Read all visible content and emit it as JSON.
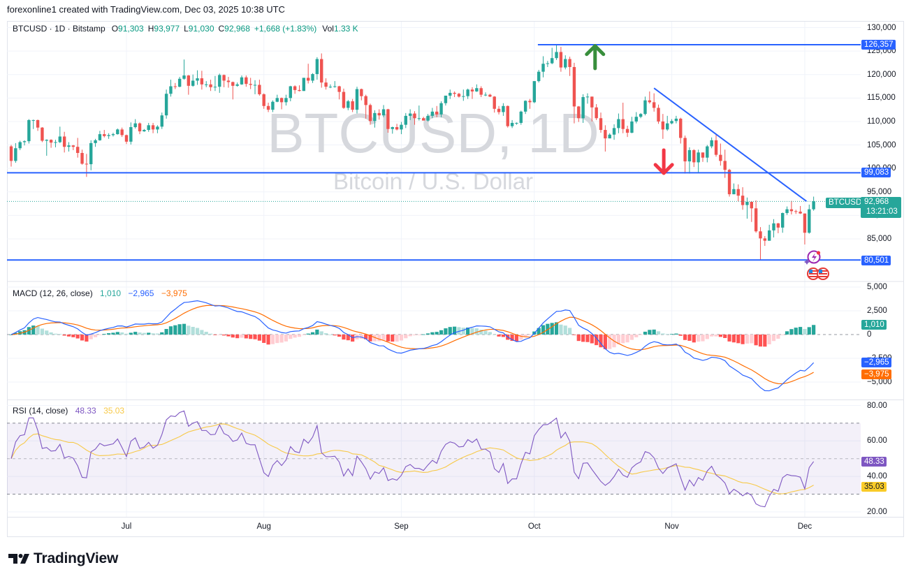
{
  "header": {
    "attribution": "forexonline1 created with TradingView.com, Dec 03, 2025 10:38 UTC"
  },
  "legend": {
    "title": "BTCUSD · 1D · Bitstamp",
    "open_label": "O",
    "open": "91,303",
    "high_label": "H",
    "high": "93,977",
    "low_label": "L",
    "low": "91,030",
    "close_label": "C",
    "close": "92,968",
    "change": "+1,668 (+1.83%)",
    "vol_label": "Vol",
    "vol": "1.33 K"
  },
  "watermark": {
    "title": "BTCUSD, 1D",
    "subtitle": "Bitcoin / U.S. Dollar"
  },
  "price_tags": {
    "symbol": "BTCUSD",
    "last_price": "92,968",
    "countdown": "13:21:03",
    "level_high": "126,357",
    "level_mid": "99,083",
    "level_low": "80,501"
  },
  "macd": {
    "label": "MACD (12, 26, close)",
    "histogram": "1,010",
    "macd": "−2,965",
    "signal": "−3,975"
  },
  "rsi": {
    "label": "RSI (14, close)",
    "rsi": "48.33",
    "rsi_ma": "35.03"
  },
  "logo": {
    "text": "TradingView"
  },
  "colors": {
    "up": "#26a69a",
    "down": "#ef5350",
    "drawing_blue": "#2962ff",
    "arrow_up": "#388e3c",
    "arrow_down": "#f23645",
    "macd_line": "#2962ff",
    "signal_line": "#ff6d00",
    "hist_pos_strong": "#26a69a",
    "hist_pos_weak": "#b2dfdb",
    "hist_neg_strong": "#ff5252",
    "hist_neg_weak": "#ffcdd2",
    "rsi_line": "#7e57c2",
    "rsi_ma_line": "#f7c948",
    "rsi_band": "#7e57c2",
    "grid": "#f0f3fa",
    "watermark": "#d6d8dd"
  },
  "chart_data": {
    "type": "candlestick",
    "title": "BTCUSD · 1D · Bitstamp",
    "symbol": "BTCUSD",
    "interval": "1D",
    "unit": "candles are [open, high, low, close] in thousands USD, one per day",
    "x_ticks": [
      {
        "label": "Jul",
        "index": 26
      },
      {
        "label": "Aug",
        "index": 57
      },
      {
        "label": "Sep",
        "index": 88
      },
      {
        "label": "Oct",
        "index": 118
      },
      {
        "label": "Nov",
        "index": 149
      },
      {
        "label": "Dec",
        "index": 179
      }
    ],
    "price_ticks": [
      {
        "value": 130000,
        "label": "130,000"
      },
      {
        "value": 125000,
        "label": "125,000"
      },
      {
        "value": 120000,
        "label": "120,000"
      },
      {
        "value": 115000,
        "label": "115,000"
      },
      {
        "value": 110000,
        "label": "110,000"
      },
      {
        "value": 105000,
        "label": "105,000"
      },
      {
        "value": 100000,
        "label": "100,000"
      },
      {
        "value": 95000,
        "label": "95,000"
      },
      {
        "value": 90000,
        "label": "90,000"
      },
      {
        "value": 85000,
        "label": "85,000"
      }
    ],
    "macd_ticks": [
      {
        "value": 5000,
        "label": "5,000"
      },
      {
        "value": 2500,
        "label": "2,500"
      },
      {
        "value": 0,
        "label": "0"
      },
      {
        "value": -2500,
        "label": "−2,500"
      },
      {
        "value": -5000,
        "label": "−5,000"
      }
    ],
    "rsi_ticks": [
      {
        "value": 80,
        "label": "80.00"
      },
      {
        "value": 60,
        "label": "60.00"
      },
      {
        "value": 40,
        "label": "40.00"
      },
      {
        "value": 20,
        "label": "20.00"
      }
    ],
    "ylim": [
      78000,
      131000
    ],
    "last_price": 92968,
    "horizontal_levels": [
      {
        "value": 126357,
        "label": "126,357",
        "start_index": 118.8
      },
      {
        "value": 99083,
        "label": "99,083",
        "start_index": -1
      },
      {
        "value": 80501,
        "label": "80,501",
        "start_index": -1
      }
    ],
    "trendline": {
      "from": {
        "index": 145,
        "price": 117100
      },
      "to": {
        "index": 179.4,
        "price": 93000
      }
    },
    "arrows": [
      {
        "direction": "up",
        "index": 131.7,
        "from_price": 121300,
        "to_price": 126100
      },
      {
        "direction": "down",
        "index": 147.2,
        "from_price": 103900,
        "to_price": 99000
      }
    ],
    "indicator_values": {
      "macd_histogram": 1010,
      "macd": -2965,
      "macd_signal": -3975,
      "rsi": 48.33,
      "rsi_ma": 35.03,
      "rsi_levels": [
        70,
        50,
        30
      ]
    },
    "candles": [
      [
        104.7,
        105.0,
        100.4,
        101.6
      ],
      [
        101.6,
        105.4,
        101.2,
        104.3
      ],
      [
        104.3,
        105.9,
        103.9,
        105.6
      ],
      [
        105.6,
        106.0,
        104.9,
        105.8
      ],
      [
        105.8,
        110.5,
        105.3,
        110.3
      ],
      [
        110.3,
        110.4,
        108.4,
        110.3
      ],
      [
        110.3,
        110.4,
        108.0,
        108.7
      ],
      [
        108.7,
        108.8,
        105.6,
        105.9
      ],
      [
        105.9,
        106.2,
        102.7,
        106.1
      ],
      [
        106.1,
        106.2,
        104.4,
        105.5
      ],
      [
        105.5,
        106.1,
        104.5,
        105.6
      ],
      [
        105.6,
        108.9,
        105.4,
        106.8
      ],
      [
        106.8,
        107.8,
        103.4,
        104.6
      ],
      [
        104.6,
        105.6,
        103.6,
        104.9
      ],
      [
        104.9,
        105.0,
        103.9,
        104.6
      ],
      [
        104.6,
        106.5,
        102.3,
        103.3
      ],
      [
        103.3,
        104.0,
        100.8,
        101.0
      ],
      [
        101.0,
        103.1,
        98.2,
        100.9
      ],
      [
        100.9,
        106.0,
        99.6,
        105.4
      ],
      [
        105.4,
        106.3,
        104.6,
        106.0
      ],
      [
        106.0,
        108.0,
        105.9,
        107.3
      ],
      [
        107.3,
        108.2,
        106.6,
        106.9
      ],
      [
        106.9,
        107.5,
        106.3,
        107.1
      ],
      [
        107.1,
        107.6,
        106.8,
        107.3
      ],
      [
        107.3,
        108.5,
        107.2,
        108.3
      ],
      [
        108.3,
        108.7,
        106.7,
        107.1
      ],
      [
        107.1,
        107.2,
        105.2,
        105.7
      ],
      [
        105.7,
        109.8,
        105.1,
        108.8
      ],
      [
        108.8,
        110.5,
        108.5,
        109.6
      ],
      [
        109.6,
        109.8,
        107.3,
        107.9
      ],
      [
        107.9,
        108.4,
        107.8,
        108.2
      ],
      [
        108.2,
        109.7,
        107.8,
        109.2
      ],
      [
        109.2,
        109.7,
        107.5,
        108.3
      ],
      [
        108.3,
        109.2,
        107.5,
        108.9
      ],
      [
        108.9,
        111.9,
        108.4,
        111.3
      ],
      [
        111.3,
        116.8,
        110.6,
        115.9
      ],
      [
        115.9,
        118.9,
        115.3,
        117.5
      ],
      [
        117.5,
        118.2,
        116.9,
        117.4
      ],
      [
        117.4,
        119.5,
        117.3,
        119.1
      ],
      [
        119.1,
        123.2,
        118.9,
        119.8
      ],
      [
        119.8,
        119.9,
        115.7,
        117.6
      ],
      [
        117.6,
        120.0,
        117.4,
        118.7
      ],
      [
        118.7,
        120.9,
        117.8,
        119.2
      ],
      [
        119.2,
        120.8,
        116.8,
        117.9
      ],
      [
        117.9,
        118.6,
        117.3,
        117.9
      ],
      [
        117.9,
        118.9,
        116.5,
        117.3
      ],
      [
        117.3,
        119.7,
        116.5,
        117.4
      ],
      [
        117.4,
        120.2,
        116.1,
        119.9
      ],
      [
        119.9,
        120.0,
        117.3,
        118.7
      ],
      [
        118.7,
        119.5,
        117.2,
        118.4
      ],
      [
        118.4,
        118.5,
        114.7,
        117.6
      ],
      [
        117.6,
        118.3,
        117.4,
        117.9
      ],
      [
        117.9,
        119.8,
        117.8,
        119.4
      ],
      [
        119.4,
        119.8,
        117.4,
        118.0
      ],
      [
        118.0,
        119.3,
        116.9,
        117.8
      ],
      [
        117.8,
        118.8,
        115.8,
        117.8
      ],
      [
        117.8,
        118.9,
        115.5,
        115.8
      ],
      [
        115.8,
        116.0,
        112.7,
        113.3
      ],
      [
        113.3,
        114.0,
        112.0,
        112.5
      ],
      [
        112.5,
        114.5,
        112.0,
        114.2
      ],
      [
        114.2,
        115.7,
        114.1,
        115.0
      ],
      [
        115.0,
        115.1,
        112.6,
        114.1
      ],
      [
        114.1,
        115.7,
        113.4,
        115.0
      ],
      [
        115.0,
        117.6,
        114.3,
        117.5
      ],
      [
        117.5,
        117.7,
        115.9,
        116.7
      ],
      [
        116.7,
        117.7,
        116.4,
        116.5
      ],
      [
        116.5,
        119.3,
        116.5,
        119.3
      ],
      [
        119.3,
        122.3,
        118.1,
        118.7
      ],
      [
        118.7,
        120.3,
        118.2,
        120.1
      ],
      [
        120.1,
        123.7,
        118.9,
        123.3
      ],
      [
        123.3,
        124.5,
        117.2,
        118.3
      ],
      [
        118.3,
        119.2,
        116.8,
        117.4
      ],
      [
        117.4,
        117.9,
        117.1,
        117.4
      ],
      [
        117.4,
        118.6,
        117.2,
        117.5
      ],
      [
        117.5,
        117.6,
        114.7,
        116.3
      ],
      [
        116.3,
        117.0,
        112.7,
        112.9
      ],
      [
        112.9,
        114.6,
        112.4,
        114.3
      ],
      [
        114.3,
        114.8,
        112.0,
        112.5
      ],
      [
        112.5,
        117.4,
        111.7,
        116.9
      ],
      [
        116.9,
        117.0,
        114.5,
        115.4
      ],
      [
        115.4,
        115.7,
        110.6,
        113.5
      ],
      [
        113.5,
        113.8,
        109.3,
        110.1
      ],
      [
        110.1,
        112.4,
        108.7,
        111.8
      ],
      [
        111.8,
        112.6,
        110.4,
        111.3
      ],
      [
        111.3,
        113.5,
        110.9,
        112.6
      ],
      [
        112.6,
        112.7,
        107.6,
        108.4
      ],
      [
        108.4,
        108.9,
        107.4,
        108.8
      ],
      [
        108.8,
        109.5,
        108.1,
        108.3
      ],
      [
        108.3,
        109.9,
        107.3,
        109.3
      ],
      [
        109.3,
        111.8,
        108.6,
        111.2
      ],
      [
        111.2,
        112.6,
        110.3,
        111.7
      ],
      [
        111.7,
        112.2,
        109.3,
        110.7
      ],
      [
        110.7,
        113.4,
        110.2,
        110.7
      ],
      [
        110.7,
        111.0,
        110.2,
        110.2
      ],
      [
        110.2,
        111.6,
        110.0,
        111.2
      ],
      [
        111.2,
        112.9,
        110.7,
        112.1
      ],
      [
        112.1,
        113.3,
        110.9,
        111.5
      ],
      [
        111.5,
        114.3,
        110.9,
        113.9
      ],
      [
        113.9,
        115.5,
        113.4,
        115.5
      ],
      [
        115.5,
        116.8,
        114.8,
        116.1
      ],
      [
        116.1,
        116.4,
        115.2,
        115.9
      ],
      [
        115.9,
        116.1,
        115.1,
        115.3
      ],
      [
        115.3,
        116.8,
        114.4,
        115.4
      ],
      [
        115.4,
        117.0,
        114.8,
        116.8
      ],
      [
        116.8,
        117.3,
        114.8,
        116.4
      ],
      [
        116.4,
        117.9,
        116.3,
        117.1
      ],
      [
        117.1,
        117.5,
        115.2,
        115.7
      ],
      [
        115.7,
        116.2,
        115.4,
        115.7
      ],
      [
        115.7,
        115.9,
        115.2,
        115.3
      ],
      [
        115.3,
        115.4,
        111.9,
        112.7
      ],
      [
        112.7,
        113.3,
        111.5,
        112.0
      ],
      [
        112.0,
        113.9,
        111.2,
        113.3
      ],
      [
        113.3,
        113.4,
        108.7,
        109.0
      ],
      [
        109.0,
        110.3,
        108.6,
        109.7
      ],
      [
        109.7,
        109.8,
        109.3,
        109.7
      ],
      [
        109.7,
        112.3,
        109.3,
        112.1
      ],
      [
        112.1,
        114.5,
        111.6,
        114.4
      ],
      [
        114.4,
        114.8,
        112.7,
        114.1
      ],
      [
        114.1,
        118.6,
        113.9,
        118.6
      ],
      [
        118.6,
        121.0,
        118.3,
        120.6
      ],
      [
        120.6,
        123.9,
        119.4,
        122.3
      ],
      [
        122.3,
        122.9,
        121.6,
        122.4
      ],
      [
        122.4,
        125.7,
        122.2,
        123.5
      ],
      [
        123.5,
        126.4,
        123.1,
        124.8
      ],
      [
        124.8,
        125.9,
        120.6,
        121.5
      ],
      [
        121.5,
        124.1,
        121.1,
        123.3
      ],
      [
        123.3,
        123.8,
        119.7,
        121.6
      ],
      [
        121.6,
        122.5,
        109.6,
        113.2
      ],
      [
        113.2,
        113.3,
        109.9,
        110.7
      ],
      [
        110.7,
        115.8,
        109.7,
        115.2
      ],
      [
        115.2,
        116.0,
        113.8,
        115.3
      ],
      [
        115.3,
        115.3,
        110.0,
        113.0
      ],
      [
        113.0,
        113.7,
        110.3,
        110.7
      ],
      [
        110.7,
        111.9,
        107.6,
        108.2
      ],
      [
        108.2,
        109.2,
        103.6,
        106.4
      ],
      [
        106.4,
        107.5,
        106.4,
        107.2
      ],
      [
        107.2,
        109.4,
        106.1,
        108.6
      ],
      [
        108.6,
        111.7,
        107.5,
        110.5
      ],
      [
        110.5,
        114.0,
        107.5,
        108.4
      ],
      [
        108.4,
        109.1,
        106.7,
        107.6
      ],
      [
        107.6,
        111.0,
        107.5,
        110.0
      ],
      [
        110.0,
        112.0,
        109.6,
        111.0
      ],
      [
        111.0,
        111.8,
        110.7,
        111.6
      ],
      [
        111.6,
        115.3,
        111.3,
        114.5
      ],
      [
        114.5,
        116.4,
        113.8,
        114.1
      ],
      [
        114.1,
        116.0,
        112.1,
        112.9
      ],
      [
        112.9,
        113.6,
        109.5,
        110.0
      ],
      [
        110.0,
        111.6,
        106.3,
        108.3
      ],
      [
        108.3,
        111.2,
        108.0,
        109.6
      ],
      [
        109.6,
        110.5,
        109.4,
        110.1
      ],
      [
        110.1,
        111.2,
        109.6,
        110.6
      ],
      [
        110.6,
        110.8,
        105.3,
        106.5
      ],
      [
        106.5,
        107.0,
        98.9,
        101.5
      ],
      [
        101.5,
        104.5,
        98.9,
        103.9
      ],
      [
        103.9,
        104.1,
        100.3,
        101.3
      ],
      [
        101.3,
        104.0,
        99.2,
        103.4
      ],
      [
        103.4,
        103.4,
        101.4,
        102.3
      ],
      [
        102.3,
        105.0,
        101.3,
        104.7
      ],
      [
        104.7,
        106.6,
        104.3,
        106.0
      ],
      [
        106.0,
        107.4,
        102.5,
        102.9
      ],
      [
        102.9,
        105.3,
        100.6,
        101.6
      ],
      [
        101.6,
        104.0,
        98.0,
        99.7
      ],
      [
        99.7,
        99.9,
        94.0,
        94.5
      ],
      [
        94.5,
        96.8,
        94.5,
        95.6
      ],
      [
        95.6,
        96.6,
        93.0,
        94.2
      ],
      [
        94.2,
        96.0,
        91.2,
        92.2
      ],
      [
        92.2,
        93.8,
        89.3,
        92.9
      ],
      [
        92.9,
        92.9,
        88.6,
        91.5
      ],
      [
        91.5,
        93.2,
        86.3,
        86.6
      ],
      [
        86.6,
        87.5,
        80.5,
        85.1
      ],
      [
        85.1,
        85.6,
        83.5,
        84.6
      ],
      [
        84.6,
        88.0,
        84.6,
        86.8
      ],
      [
        86.8,
        89.2,
        85.3,
        88.3
      ],
      [
        88.3,
        88.4,
        86.2,
        87.4
      ],
      [
        87.4,
        90.6,
        86.3,
        90.5
      ],
      [
        90.5,
        91.9,
        90.1,
        91.3
      ],
      [
        91.3,
        93.1,
        90.2,
        90.9
      ],
      [
        90.9,
        91.2,
        90.3,
        90.8
      ],
      [
        90.8,
        92.0,
        90.3,
        90.4
      ],
      [
        90.4,
        90.4,
        83.8,
        86.3
      ],
      [
        86.3,
        92.3,
        86.1,
        91.3
      ],
      [
        91.3,
        94.0,
        91.0,
        93.0
      ]
    ]
  }
}
